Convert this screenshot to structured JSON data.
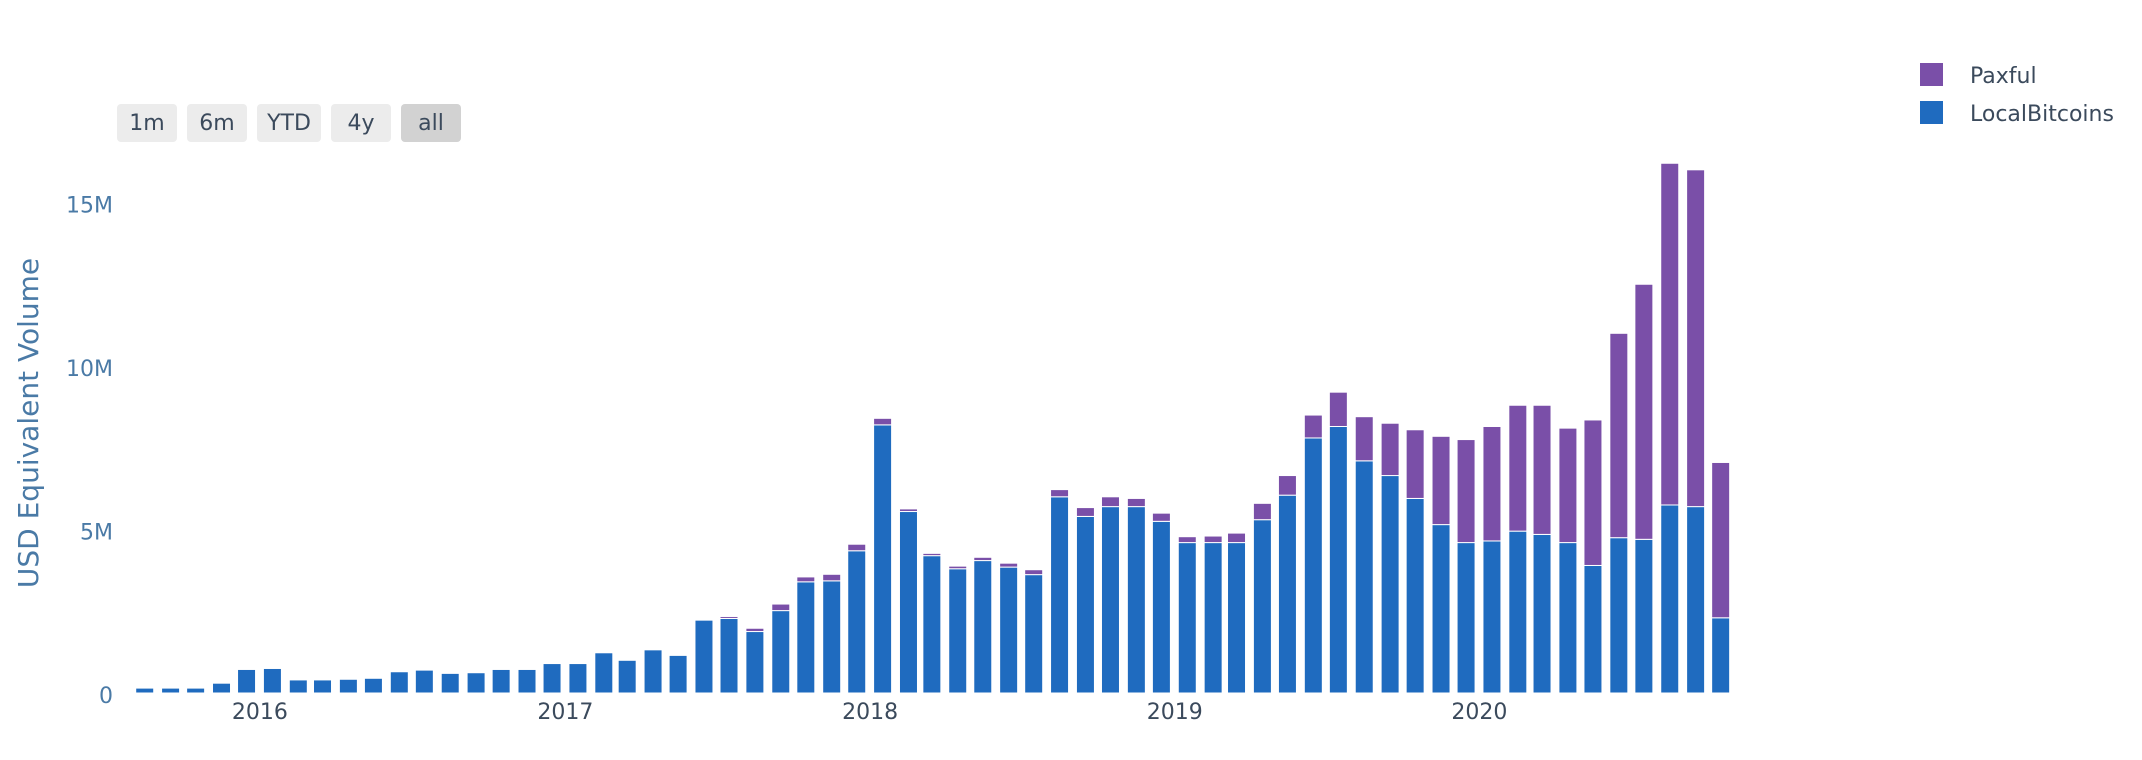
{
  "range_selector": {
    "buttons": [
      {
        "label": "1m",
        "active": false
      },
      {
        "label": "6m",
        "active": false
      },
      {
        "label": "YTD",
        "active": false
      },
      {
        "label": "4y",
        "active": false
      },
      {
        "label": "all",
        "active": true
      }
    ]
  },
  "legend": {
    "items": [
      {
        "label": "Paxful",
        "color": "#7a4fa8"
      },
      {
        "label": "LocalBitcoins",
        "color": "#1f6bbf"
      }
    ]
  },
  "colors": {
    "axis_text": "#4a7aa6",
    "tick_text": "#3b4a5c",
    "button_bg": "#ececec",
    "button_active_bg": "#d2d2d2",
    "bar_outline": "#ffffff"
  },
  "chart_data": {
    "type": "bar",
    "barmode": "stack",
    "title": "",
    "xlabel": "",
    "ylabel": "USD Equivalent Volume",
    "y_ticks": [
      {
        "value": 0,
        "label": "0"
      },
      {
        "value": 5000000,
        "label": "5M"
      },
      {
        "value": 10000000,
        "label": "10M"
      },
      {
        "value": 15000000,
        "label": "15M"
      }
    ],
    "x_ticks": [
      {
        "value": "2016-01-01",
        "label": "2016"
      },
      {
        "value": "2017-01-01",
        "label": "2017"
      },
      {
        "value": "2018-01-01",
        "label": "2018"
      },
      {
        "value": "2019-01-01",
        "label": "2019"
      },
      {
        "value": "2020-01-01",
        "label": "2020"
      }
    ],
    "x_range": [
      "2015-07-15",
      "2020-10-20"
    ],
    "ylim": [
      0,
      16300000
    ],
    "grid": false,
    "legend_position": "top-right",
    "categories": [
      "2015-08",
      "2015-09",
      "2015-10",
      "2015-11",
      "2015-12",
      "2016-01",
      "2016-02",
      "2016-03",
      "2016-04",
      "2016-05",
      "2016-06",
      "2016-07",
      "2016-08",
      "2016-09",
      "2016-10",
      "2016-11",
      "2016-12",
      "2017-01",
      "2017-02",
      "2017-03",
      "2017-04",
      "2017-05",
      "2017-06",
      "2017-07",
      "2017-08",
      "2017-09",
      "2017-10",
      "2017-11",
      "2017-12",
      "2018-01",
      "2018-02",
      "2018-03",
      "2018-04",
      "2018-05",
      "2018-06",
      "2018-07",
      "2018-08",
      "2018-09",
      "2018-10",
      "2018-11",
      "2018-12",
      "2019-01",
      "2019-02",
      "2019-03",
      "2019-04",
      "2019-05",
      "2019-06",
      "2019-07",
      "2019-08",
      "2019-09",
      "2019-10",
      "2019-11",
      "2019-12",
      "2020-01",
      "2020-02",
      "2020-03",
      "2020-04",
      "2020-05",
      "2020-06",
      "2020-07",
      "2020-08",
      "2020-09",
      "2020-10"
    ],
    "series": [
      {
        "name": "LocalBitcoins",
        "values": [
          150000,
          150000,
          150000,
          300000,
          720000,
          750000,
          400000,
          400000,
          420000,
          450000,
          650000,
          700000,
          600000,
          620000,
          720000,
          720000,
          900000,
          900000,
          1230000,
          1000000,
          1320000,
          1150000,
          2230000,
          2280000,
          1880000,
          2520000,
          3400000,
          3430000,
          4350000,
          8200000,
          5550000,
          4200000,
          3800000,
          4050000,
          3850000,
          3620000,
          6000000,
          5400000,
          5700000,
          5700000,
          5250000,
          4600000,
          4600000,
          4600000,
          5300000,
          6050000,
          7800000,
          8150000,
          7100000,
          6650000,
          5950000,
          5150000,
          4600000,
          4650000,
          4950000,
          4850000,
          4600000,
          3900000,
          4750000,
          4700000,
          5750000,
          5700000,
          2300000
        ]
      },
      {
        "name": "Paxful",
        "values": [
          0,
          0,
          0,
          0,
          0,
          0,
          0,
          0,
          0,
          0,
          0,
          0,
          0,
          0,
          0,
          0,
          0,
          0,
          0,
          0,
          0,
          0,
          30000,
          60000,
          100000,
          200000,
          150000,
          200000,
          200000,
          200000,
          80000,
          70000,
          80000,
          100000,
          120000,
          150000,
          220000,
          270000,
          300000,
          250000,
          250000,
          180000,
          200000,
          290000,
          500000,
          600000,
          700000,
          1050000,
          1350000,
          1600000,
          2100000,
          2700000,
          3150000,
          3500000,
          3850000,
          3950000,
          3500000,
          4450000,
          6250000,
          7800000,
          10450000,
          10300000,
          4750000
        ]
      }
    ]
  }
}
